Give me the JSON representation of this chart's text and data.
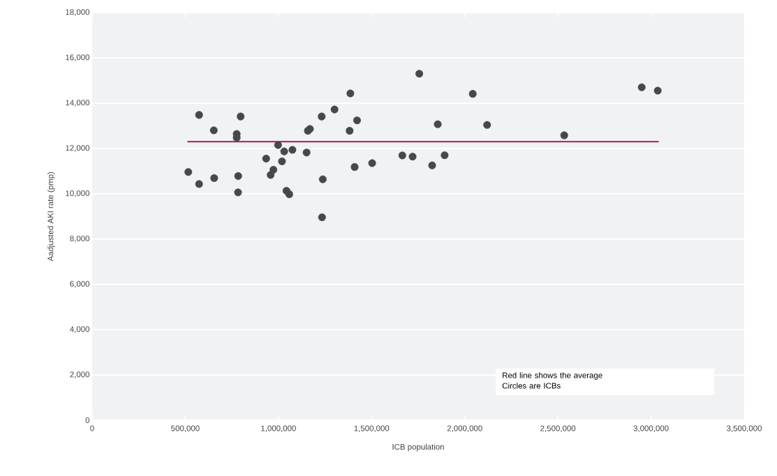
{
  "chart_data": {
    "type": "scatter",
    "xlabel": "ICB population",
    "ylabel": "Aadjusted AKI rate (pmp)",
    "xlim": [
      0,
      3500000
    ],
    "ylim": [
      0,
      18000
    ],
    "grid": "y",
    "xticks": [
      {
        "value": 0,
        "label": "0"
      },
      {
        "value": 500000,
        "label": "500,000"
      },
      {
        "value": 1000000,
        "label": "1,000,000"
      },
      {
        "value": 1500000,
        "label": "1,500,000"
      },
      {
        "value": 2000000,
        "label": "2,000,000"
      },
      {
        "value": 2500000,
        "label": "2,500,000"
      },
      {
        "value": 3000000,
        "label": "3,000,000"
      },
      {
        "value": 3500000,
        "label": "3,500,000"
      }
    ],
    "yticks": [
      {
        "value": 0,
        "label": "0"
      },
      {
        "value": 2000,
        "label": "2,000"
      },
      {
        "value": 4000,
        "label": "4,000"
      },
      {
        "value": 6000,
        "label": "6,000"
      },
      {
        "value": 8000,
        "label": "8,000"
      },
      {
        "value": 10000,
        "label": "10,000"
      },
      {
        "value": 12000,
        "label": "12,000"
      },
      {
        "value": 14000,
        "label": "14,000"
      },
      {
        "value": 16000,
        "label": "16,000"
      },
      {
        "value": 18000,
        "label": "18,000"
      }
    ],
    "annotations": [
      "Red line shows the average",
      "Circles are ICBs"
    ],
    "series": [
      {
        "color": "#46484b",
        "marker": "circle",
        "x": [
          574000,
          797000,
          653000,
          776000,
          776000,
          998000,
          1031000,
          1075000,
          1151000,
          934000,
          1019000,
          973000,
          958000,
          516000,
          574000,
          655000,
          784000,
          783000,
          1043000,
          1058000,
          1238000,
          1234000,
          1158000,
          1169000,
          1232000,
          1301000,
          1386000,
          1422000,
          1382000,
          1409000,
          1503000,
          1756000,
          2043000,
          2950000,
          3036000,
          1855000,
          2120000,
          2534000,
          1665000,
          1720000,
          1892000,
          1825000
        ],
        "values": [
          13480,
          13410,
          12800,
          12640,
          12480,
          12150,
          11870,
          11940,
          11820,
          11550,
          11430,
          11060,
          10830,
          10960,
          10430,
          10690,
          10780,
          10060,
          10130,
          9980,
          10640,
          8960,
          12780,
          12860,
          13410,
          13720,
          14430,
          13240,
          12780,
          11180,
          11350,
          15300,
          14410,
          14700,
          14550,
          13070,
          13040,
          12580,
          11690,
          11640,
          11700,
          11250
        ]
      },
      {
        "type": "line",
        "color": "#a51d4f",
        "marker": "none",
        "line_style": "solid",
        "x": [
          511000,
          3041000
        ],
        "values": [
          12300,
          12300
        ]
      }
    ]
  }
}
